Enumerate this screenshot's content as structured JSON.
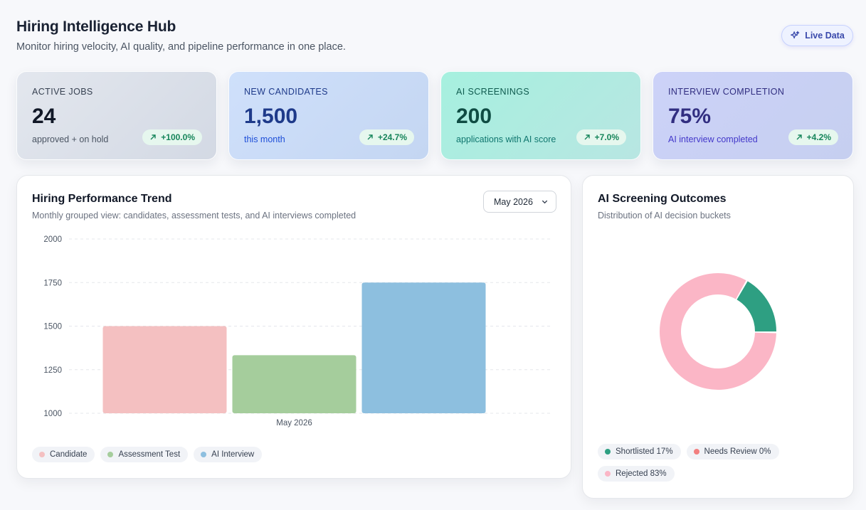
{
  "header": {
    "title": "Hiring Intelligence Hub",
    "subtitle": "Monitor hiring velocity, AI quality, and pipeline performance in one place.",
    "live_label": "Live Data"
  },
  "kpis": [
    {
      "label": "ACTIVE JOBS",
      "value": "24",
      "note": "approved + on hold",
      "delta": "+100.0%"
    },
    {
      "label": "NEW CANDIDATES",
      "value": "1,500",
      "note": "this month",
      "delta": "+24.7%"
    },
    {
      "label": "AI SCREENINGS",
      "value": "200",
      "note": "applications with AI score",
      "delta": "+7.0%"
    },
    {
      "label": "INTERVIEW COMPLETION",
      "value": "75%",
      "note": "AI interview completed",
      "delta": "+4.2%"
    }
  ],
  "trend": {
    "title": "Hiring Performance Trend",
    "subtitle": "Monthly grouped view: candidates, assessment tests, and AI interviews completed",
    "selected_month": "May 2026"
  },
  "outcomes": {
    "title": "AI Screening Outcomes",
    "subtitle": "Distribution of AI decision buckets"
  },
  "chart_data": [
    {
      "type": "bar",
      "title": "Hiring Performance Trend",
      "categories": [
        "May 2026"
      ],
      "series": [
        {
          "name": "Candidate",
          "values": [
            1500
          ],
          "color": "#f4c0c1"
        },
        {
          "name": "Assessment Test",
          "values": [
            1333
          ],
          "color": "#a5cd9c"
        },
        {
          "name": "AI Interview",
          "values": [
            1750
          ],
          "color": "#8dbfdf"
        }
      ],
      "yticks": [
        2000,
        1750,
        1500,
        1250,
        1000
      ],
      "ylim": [
        1000,
        2000
      ],
      "grid": true,
      "legend": "bottom-left"
    },
    {
      "type": "pie",
      "title": "AI Screening Outcomes",
      "slices": [
        {
          "name": "Shortlisted",
          "value": 17,
          "label": "Shortlisted 17%",
          "color": "#2e9f82"
        },
        {
          "name": "Needs Review",
          "value": 0,
          "label": "Needs Review 0%",
          "color": "#f27f7f"
        },
        {
          "name": "Rejected",
          "value": 83,
          "label": "Rejected 83%",
          "color": "#fbb6c6"
        }
      ],
      "legend": "bottom"
    }
  ]
}
